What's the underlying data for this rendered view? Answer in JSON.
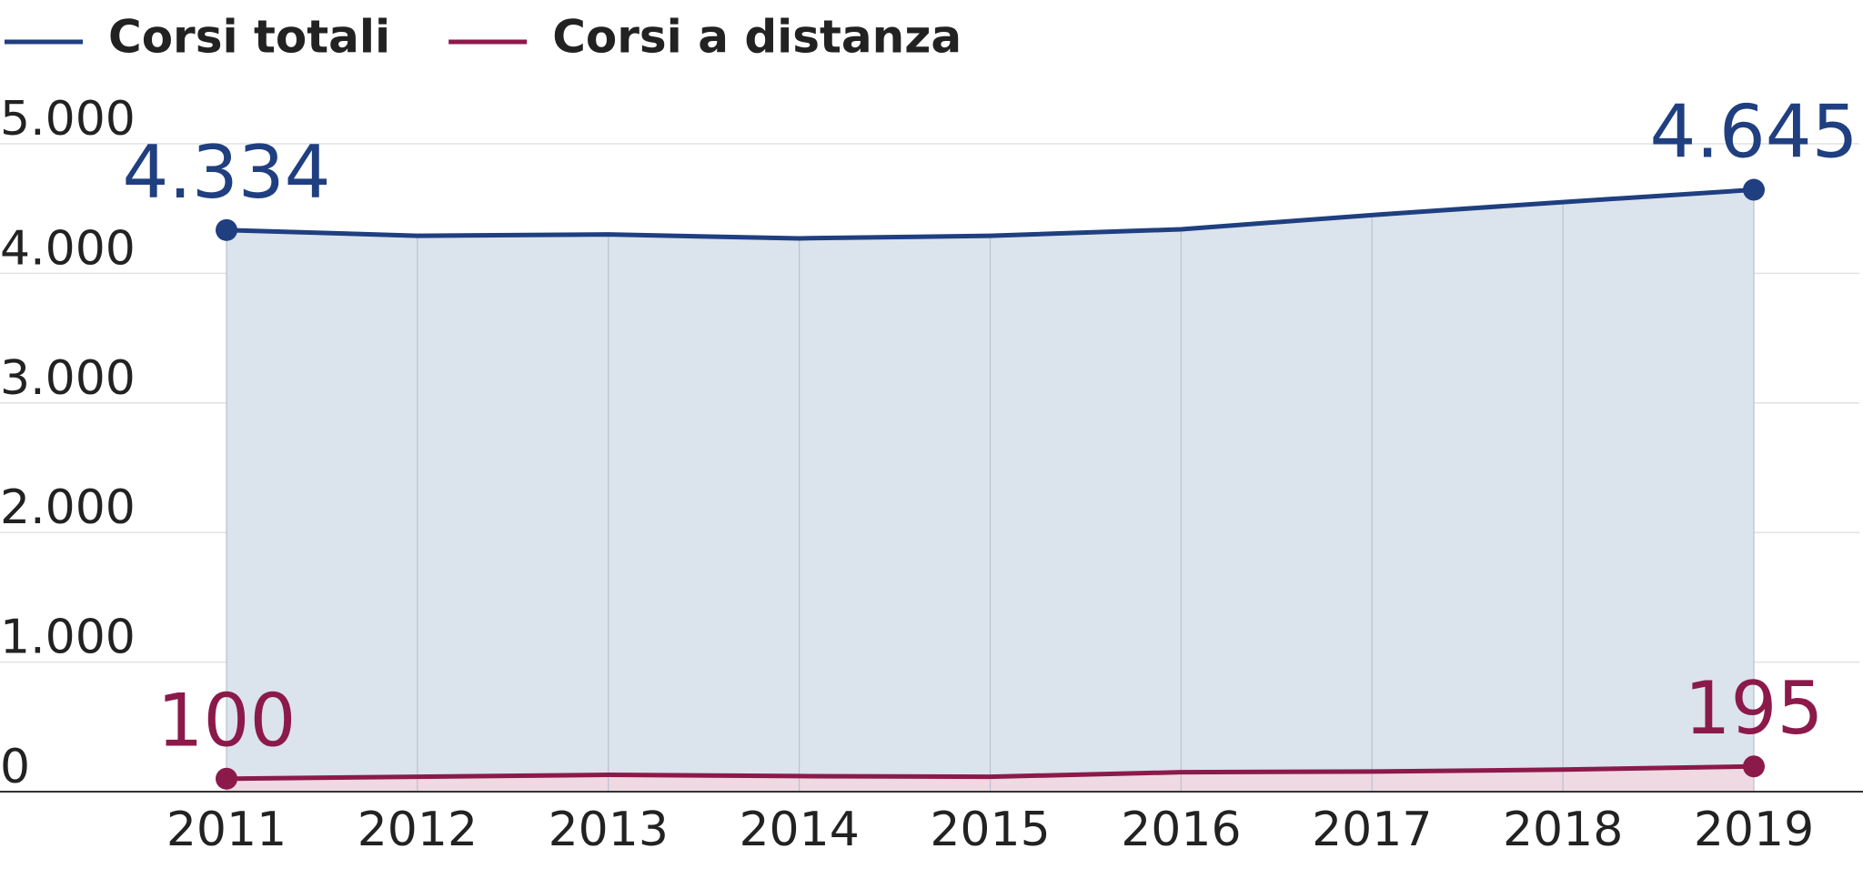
{
  "chart_data": {
    "type": "area-line",
    "categories": [
      "2011",
      "2012",
      "2013",
      "2014",
      "2015",
      "2016",
      "2017",
      "2018",
      "2019"
    ],
    "series": [
      {
        "name": "Corsi totali",
        "color": "#1f3f80",
        "fill": "#dbe3ed",
        "values": [
          4334,
          4290,
          4300,
          4270,
          4290,
          4340,
          4450,
          4550,
          4645
        ],
        "value_labels": [
          "4.334",
          null,
          null,
          null,
          null,
          null,
          null,
          null,
          "4.645"
        ]
      },
      {
        "name": "Corsi a distanza",
        "color": "#8b1a4a",
        "fill": "#efd9e2",
        "values": [
          100,
          115,
          130,
          120,
          115,
          150,
          155,
          170,
          195
        ],
        "value_labels": [
          "100",
          null,
          null,
          null,
          null,
          null,
          null,
          null,
          "195"
        ]
      }
    ],
    "ylim": [
      0,
      5000
    ],
    "yticks": [
      0,
      {
        "value": 1000,
        "label": "1.000"
      },
      {
        "value": 2000,
        "label": "2.000"
      },
      {
        "value": 3000,
        "label": "3.000"
      },
      {
        "value": 4000,
        "label": "4.000"
      },
      {
        "value": 5000,
        "label": "5.000"
      }
    ],
    "grid": true
  }
}
